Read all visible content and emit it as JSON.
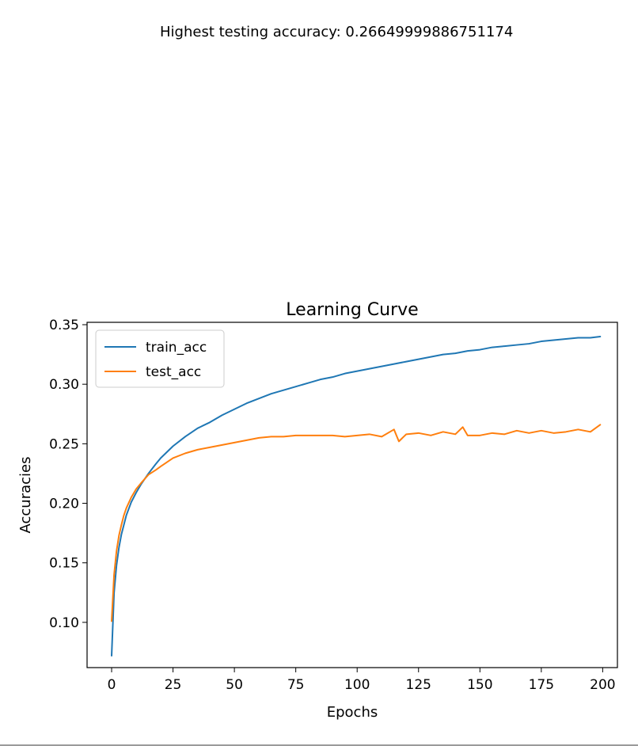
{
  "output": {
    "stdout_text": "Highest testing accuracy: 0.26649999886751174"
  },
  "chart_data": {
    "type": "line",
    "title": "Learning Curve",
    "xlabel": "Epochs",
    "ylabel": "Accuracies",
    "xlim": [
      -10,
      206
    ],
    "ylim": [
      0.062,
      0.352
    ],
    "xticks": [
      0,
      25,
      50,
      75,
      100,
      125,
      150,
      175,
      200
    ],
    "yticks": [
      0.1,
      0.15,
      0.2,
      0.25,
      0.3,
      0.35
    ],
    "ytick_labels": [
      "0.10",
      "0.15",
      "0.20",
      "0.25",
      "0.30",
      "0.35"
    ],
    "grid": false,
    "legend_position": "upper-left",
    "series": [
      {
        "name": "train_acc",
        "color": "#1f77b4",
        "x": [
          0,
          1,
          2,
          3,
          4,
          5,
          6,
          8,
          10,
          12,
          15,
          18,
          20,
          25,
          30,
          35,
          40,
          45,
          50,
          55,
          60,
          65,
          70,
          75,
          80,
          85,
          90,
          95,
          100,
          105,
          110,
          115,
          120,
          125,
          130,
          135,
          140,
          145,
          150,
          155,
          160,
          165,
          170,
          175,
          180,
          185,
          190,
          195,
          199
        ],
        "y": [
          0.072,
          0.125,
          0.148,
          0.163,
          0.174,
          0.182,
          0.19,
          0.201,
          0.209,
          0.216,
          0.225,
          0.233,
          0.238,
          0.248,
          0.256,
          0.263,
          0.268,
          0.274,
          0.279,
          0.284,
          0.288,
          0.292,
          0.295,
          0.298,
          0.301,
          0.304,
          0.306,
          0.309,
          0.311,
          0.313,
          0.315,
          0.317,
          0.319,
          0.321,
          0.323,
          0.325,
          0.326,
          0.328,
          0.329,
          0.331,
          0.332,
          0.333,
          0.334,
          0.336,
          0.337,
          0.338,
          0.339,
          0.339,
          0.34
        ]
      },
      {
        "name": "test_acc",
        "color": "#ff7f0e",
        "x": [
          0,
          1,
          2,
          3,
          4,
          5,
          6,
          8,
          10,
          12,
          15,
          18,
          20,
          25,
          30,
          35,
          40,
          45,
          50,
          55,
          60,
          65,
          70,
          75,
          80,
          85,
          90,
          95,
          100,
          105,
          110,
          115,
          117,
          120,
          125,
          130,
          135,
          140,
          143,
          145,
          150,
          155,
          160,
          165,
          170,
          175,
          180,
          185,
          190,
          195,
          199
        ],
        "y": [
          0.101,
          0.14,
          0.16,
          0.173,
          0.182,
          0.19,
          0.196,
          0.205,
          0.212,
          0.217,
          0.224,
          0.228,
          0.231,
          0.238,
          0.242,
          0.245,
          0.247,
          0.249,
          0.251,
          0.253,
          0.255,
          0.256,
          0.256,
          0.257,
          0.257,
          0.257,
          0.257,
          0.256,
          0.257,
          0.258,
          0.256,
          0.262,
          0.252,
          0.258,
          0.259,
          0.257,
          0.26,
          0.258,
          0.264,
          0.257,
          0.257,
          0.259,
          0.258,
          0.261,
          0.259,
          0.261,
          0.259,
          0.26,
          0.262,
          0.26,
          0.266
        ]
      }
    ]
  }
}
